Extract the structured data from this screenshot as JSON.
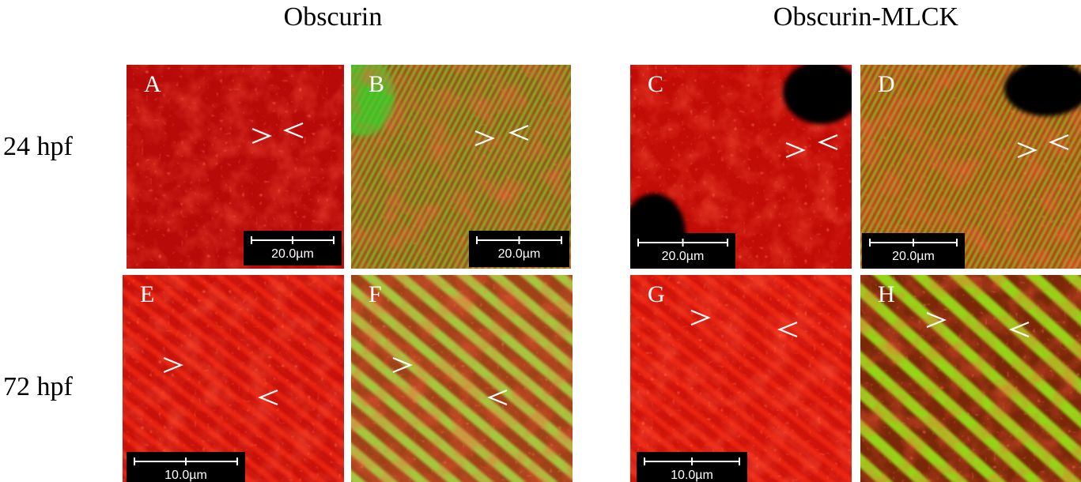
{
  "headers": [
    "Obscurin",
    "Obscurin-MLCK"
  ],
  "row_labels": [
    "24 hpf",
    "72 hpf"
  ],
  "panels": [
    {
      "label": "A",
      "scale_bar": "20.0µm"
    },
    {
      "label": "B",
      "scale_bar": "20.0µm"
    },
    {
      "label": "C",
      "scale_bar": "20.0µm"
    },
    {
      "label": "D",
      "scale_bar": "20.0µm"
    },
    {
      "label": "E",
      "scale_bar": "10.0µm"
    },
    {
      "label": "F"
    },
    {
      "label": "G",
      "scale_bar": "10.0µm"
    },
    {
      "label": "H"
    }
  ]
}
